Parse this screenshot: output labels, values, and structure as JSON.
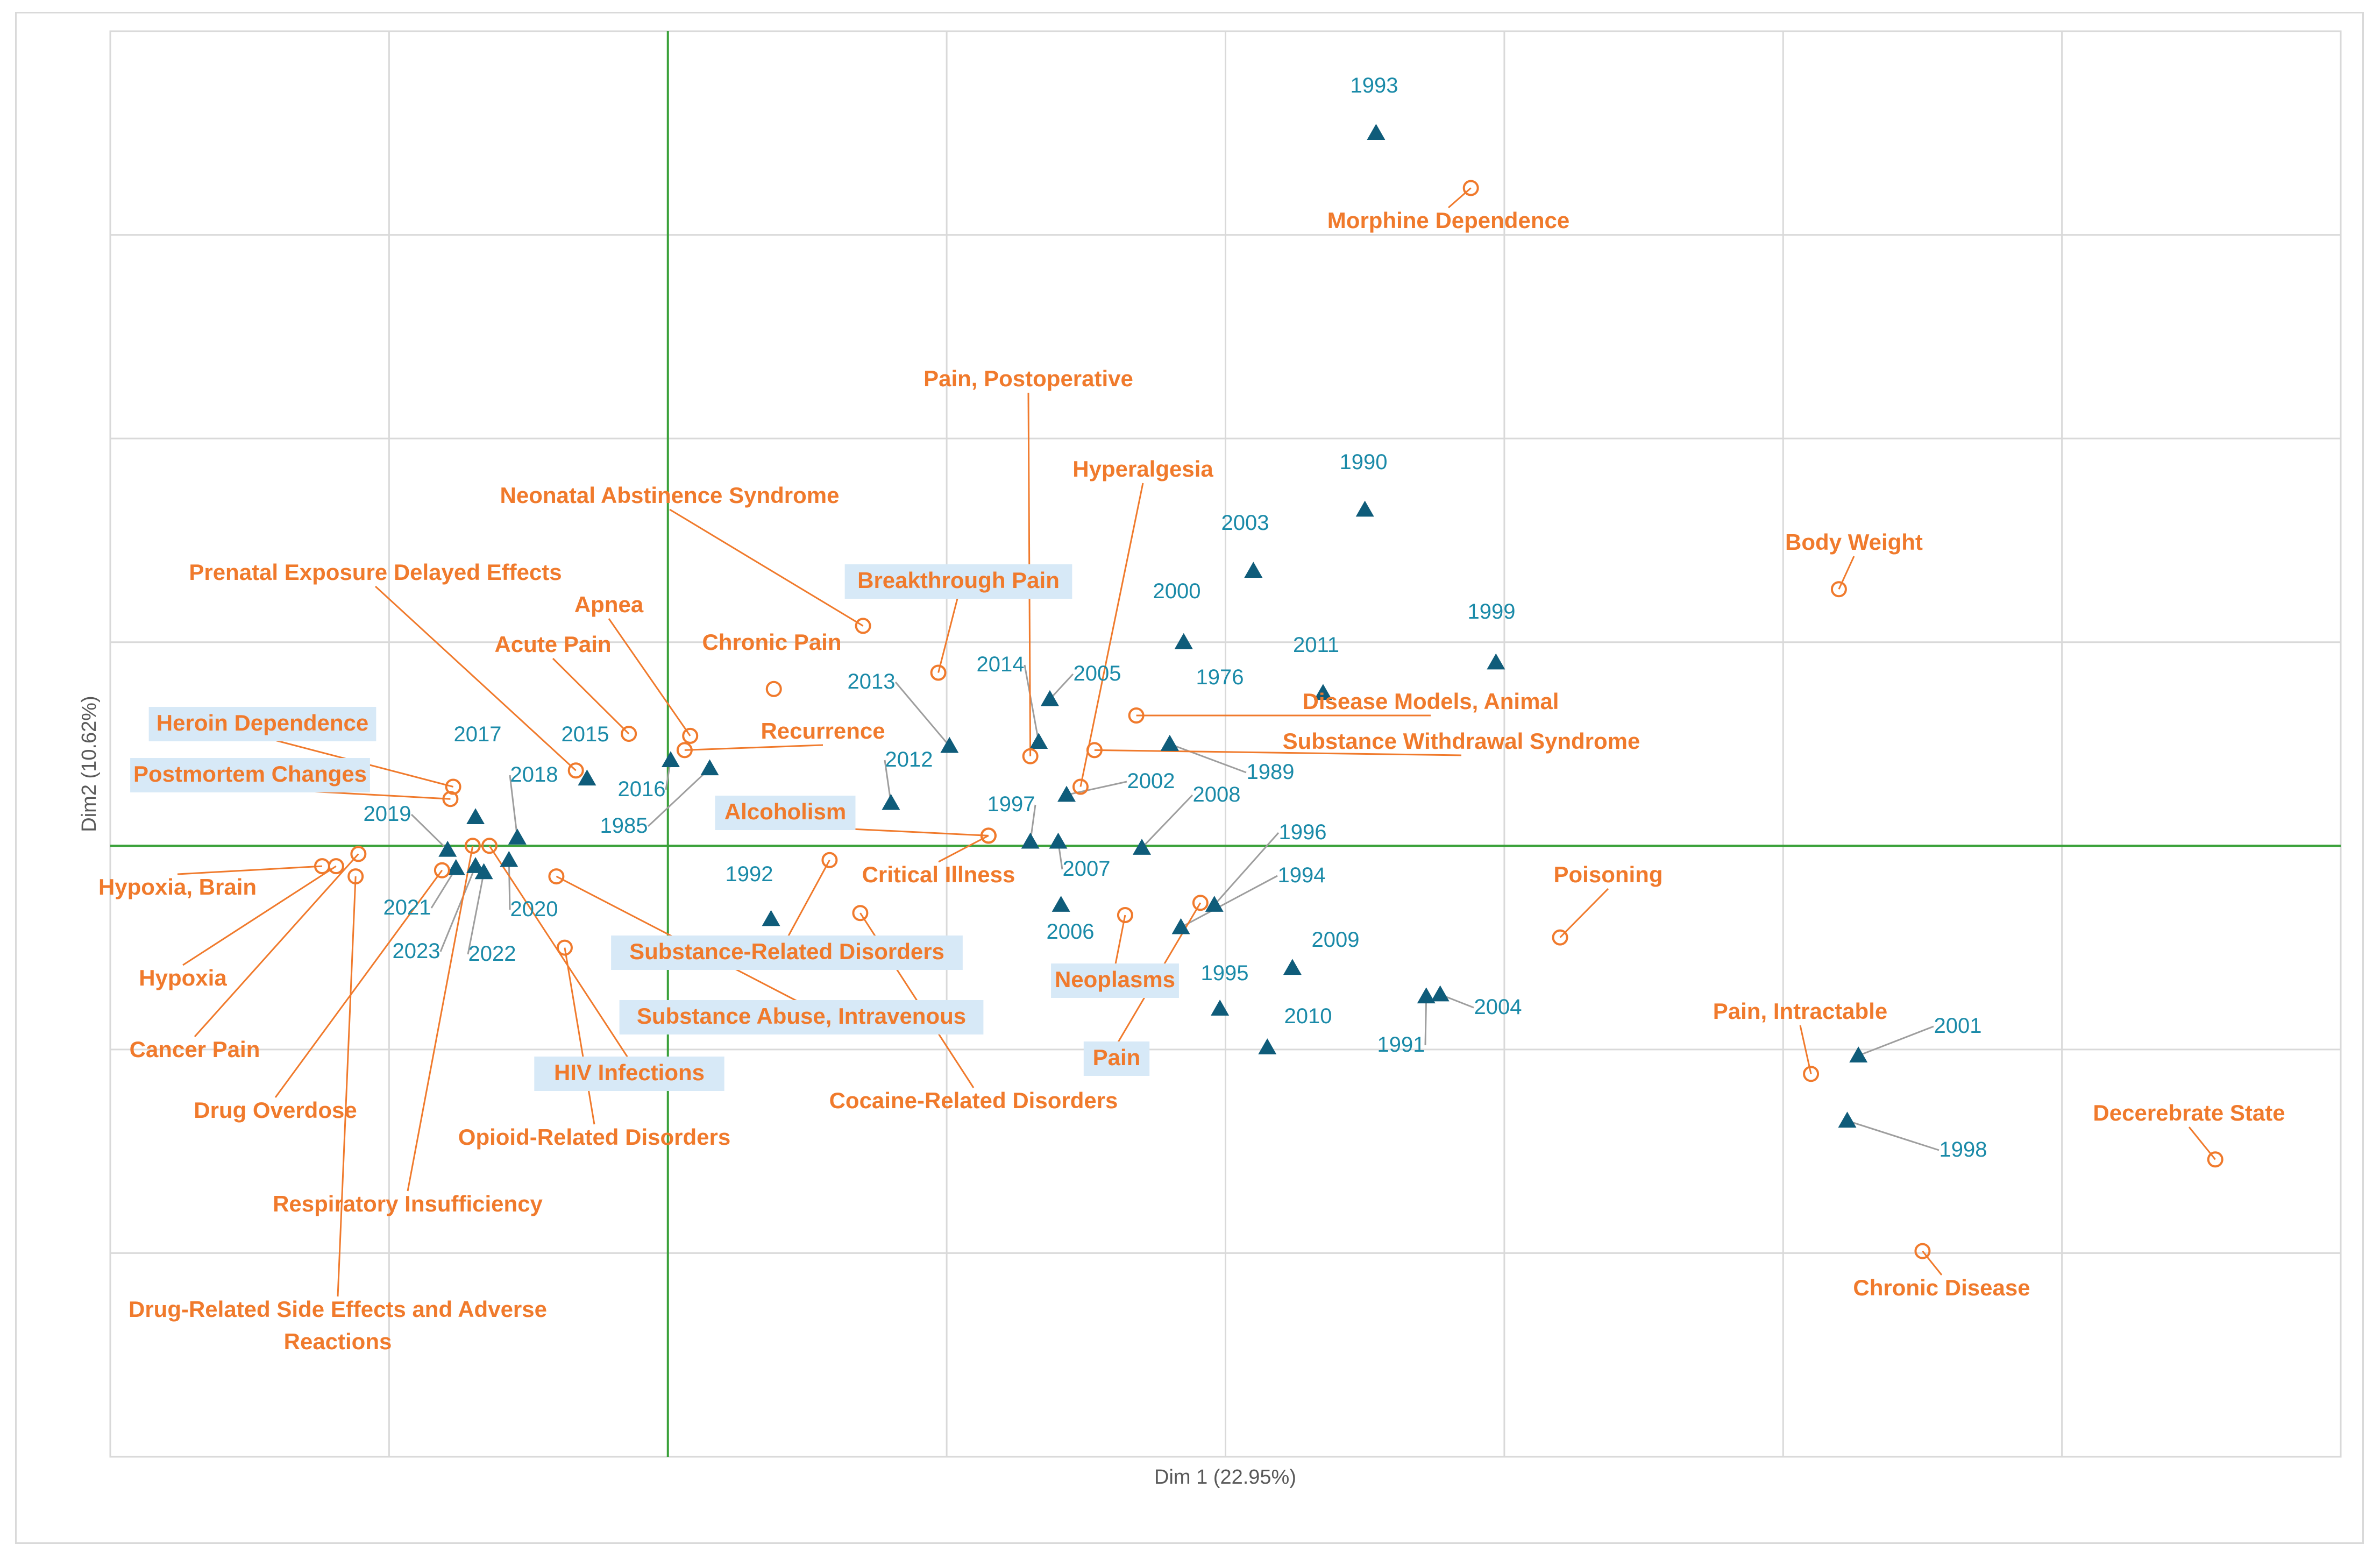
{
  "chart_data": {
    "type": "scatter",
    "title": "",
    "xlabel": "Dim 1 (22.95%)",
    "ylabel": "Dim2 (10.62%)",
    "xlim": [
      -2,
      6
    ],
    "ylim": [
      -3,
      4
    ],
    "grid": true,
    "colors": {
      "year": "#0f5c7a",
      "year_text": "#1a8aa8",
      "term": "#f07a2c",
      "leader_year": "#9e9e9e",
      "highlight_box": "#d7e9f7",
      "axis_line": "#3aa13a",
      "grid": "#d9d9d9"
    },
    "series": [
      {
        "name": "Years",
        "marker": "triangle",
        "points": [
          {
            "label": "1976",
            "x": 1.8,
            "y": 0.5
          },
          {
            "label": "1985",
            "x": 0.15,
            "y": 0.38
          },
          {
            "label": "1989",
            "x": 1.8,
            "y": 0.5
          },
          {
            "label": "1990",
            "x": 2.5,
            "y": 1.65
          },
          {
            "label": "1991",
            "x": 2.72,
            "y": -0.74
          },
          {
            "label": "1992",
            "x": 0.37,
            "y": -0.36
          },
          {
            "label": "1993",
            "x": 2.54,
            "y": 3.5
          },
          {
            "label": "1994",
            "x": 1.84,
            "y": -0.4
          },
          {
            "label": "1995",
            "x": 1.98,
            "y": -0.8
          },
          {
            "label": "1996",
            "x": 1.96,
            "y": -0.29
          },
          {
            "label": "1997",
            "x": 1.3,
            "y": 0.02
          },
          {
            "label": "1998",
            "x": 4.23,
            "y": -1.35
          },
          {
            "label": "1999",
            "x": 2.97,
            "y": 0.9
          },
          {
            "label": "2000",
            "x": 1.85,
            "y": 1.0
          },
          {
            "label": "2001",
            "x": 4.27,
            "y": -1.03
          },
          {
            "label": "2002",
            "x": 1.43,
            "y": 0.25
          },
          {
            "label": "2003",
            "x": 2.1,
            "y": 1.35
          },
          {
            "label": "2004",
            "x": 2.77,
            "y": -0.73
          },
          {
            "label": "2005",
            "x": 1.37,
            "y": 0.72
          },
          {
            "label": "2006",
            "x": 1.41,
            "y": -0.29
          },
          {
            "label": "2007",
            "x": 1.4,
            "y": 0.02
          },
          {
            "label": "2008",
            "x": 1.7,
            "y": -0.01
          },
          {
            "label": "2009",
            "x": 2.24,
            "y": -0.6
          },
          {
            "label": "2010",
            "x": 2.15,
            "y": -0.99
          },
          {
            "label": "2011",
            "x": 2.35,
            "y": 0.75
          },
          {
            "label": "2012",
            "x": 0.8,
            "y": 0.21
          },
          {
            "label": "2013",
            "x": 1.01,
            "y": 0.49
          },
          {
            "label": "2014",
            "x": 1.33,
            "y": 0.51
          },
          {
            "label": "2015",
            "x": -0.29,
            "y": 0.33
          },
          {
            "label": "2016",
            "x": 0.01,
            "y": 0.42
          },
          {
            "label": "2017",
            "x": -0.69,
            "y": 0.14
          },
          {
            "label": "2018",
            "x": -0.54,
            "y": 0.04
          },
          {
            "label": "2019",
            "x": -0.79,
            "y": -0.02
          },
          {
            "label": "2020",
            "x": -0.57,
            "y": -0.07
          },
          {
            "label": "2021",
            "x": -0.76,
            "y": -0.11
          },
          {
            "label": "2022",
            "x": -0.66,
            "y": -0.13
          },
          {
            "label": "2023",
            "x": -0.69,
            "y": -0.1
          }
        ]
      },
      {
        "name": "MeSH terms",
        "marker": "circle",
        "points": [
          {
            "label": "Morphine Dependence",
            "x": 2.88,
            "y": 3.23
          },
          {
            "label": "Pain, Postoperative",
            "x": 1.3,
            "y": 0.44
          },
          {
            "label": "Hyperalgesia",
            "x": 1.48,
            "y": 0.29
          },
          {
            "label": "Neonatal Abstinence Syndrome",
            "x": 0.7,
            "y": 1.08
          },
          {
            "label": "Prenatal Exposure Delayed Effects",
            "x": -0.33,
            "y": 0.37
          },
          {
            "label": "Breakthrough Pain",
            "x": 0.97,
            "y": 0.85
          },
          {
            "label": "Apnea",
            "x": 0.08,
            "y": 0.54
          },
          {
            "label": "Acute Pain",
            "x": -0.14,
            "y": 0.55
          },
          {
            "label": "Chronic Pain",
            "x": 0.38,
            "y": 0.77
          },
          {
            "label": "Recurrence",
            "x": 0.06,
            "y": 0.47
          },
          {
            "label": "Heroin Dependence",
            "x": -0.77,
            "y": 0.29
          },
          {
            "label": "Postmortem Changes",
            "x": -0.78,
            "y": 0.23
          },
          {
            "label": "Disease Models, Animal",
            "x": 1.68,
            "y": 0.64
          },
          {
            "label": "Substance Withdrawal Syndrome",
            "x": 1.53,
            "y": 0.47
          },
          {
            "label": "Body Weight",
            "x": 4.2,
            "y": 1.26
          },
          {
            "label": "Alcoholism",
            "x": 1.15,
            "y": 0.05
          },
          {
            "label": "Critical Illness",
            "x": 1.15,
            "y": 0.05
          },
          {
            "label": "Substance-Related Disorders",
            "x": 0.58,
            "y": -0.07
          },
          {
            "label": "Cocaine-Related Disorders",
            "x": 0.69,
            "y": -0.33
          },
          {
            "label": "Substance Abuse, Intravenous",
            "x": -0.4,
            "y": -0.15
          },
          {
            "label": "HIV Infections",
            "x": -0.64,
            "y": 0.0
          },
          {
            "label": "Opioid-Related Disorders",
            "x": -0.37,
            "y": -0.5
          },
          {
            "label": "Neoplasms",
            "x": 1.64,
            "y": -0.34
          },
          {
            "label": "Pain",
            "x": 1.91,
            "y": -0.28
          },
          {
            "label": "Poisoning",
            "x": 3.2,
            "y": -0.45
          },
          {
            "label": "Pain, Intractable",
            "x": 4.1,
            "y": -1.12
          },
          {
            "label": "Decerebrate State",
            "x": 5.55,
            "y": -1.54
          },
          {
            "label": "Chronic Disease",
            "x": 4.5,
            "y": -1.99
          },
          {
            "label": "Hypoxia, Brain",
            "x": -1.24,
            "y": -0.1
          },
          {
            "label": "Hypoxia",
            "x": -1.19,
            "y": -0.1
          },
          {
            "label": "Cancer Pain",
            "x": -1.11,
            "y": -0.04
          },
          {
            "label": "Drug Overdose",
            "x": -0.81,
            "y": -0.12
          },
          {
            "label": "Respiratory Insufficiency",
            "x": -0.7,
            "y": 0.0
          },
          {
            "label": "Drug-Related Side Effects and Adverse Reactions",
            "x": -1.12,
            "y": -0.15
          }
        ]
      }
    ]
  }
}
